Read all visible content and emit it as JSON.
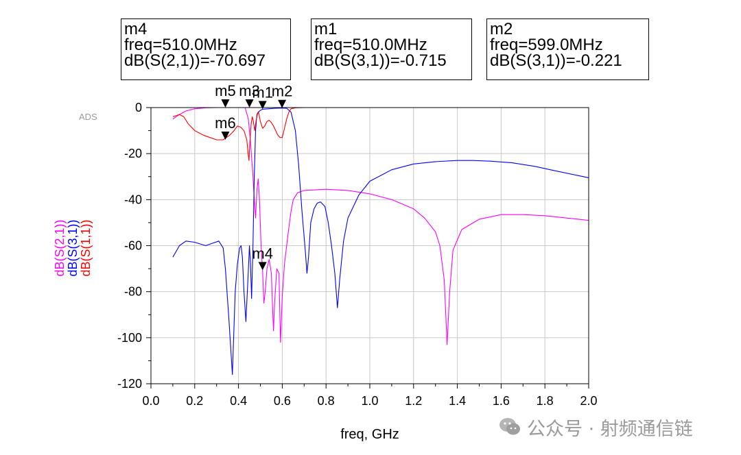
{
  "app_label": "ADS",
  "marker_boxes": [
    {
      "name": "m4",
      "freq_line": "freq=510.0MHz",
      "value_line": "dB(S(2,1))=-70.697"
    },
    {
      "name": "m1",
      "freq_line": "freq=510.0MHz",
      "value_line": "dB(S(3,1))=-0.715"
    },
    {
      "name": "m2",
      "freq_line": "freq=599.0MHz",
      "value_line": "dB(S(3,1))=-0.221"
    }
  ],
  "watermark": {
    "text": "公众号 · 射频通信链"
  },
  "chart_data": {
    "type": "line",
    "xlabel": "freq, GHz",
    "ylabel_parts": [
      {
        "text": "dB(S(2,1))",
        "color": "#ff00ff"
      },
      {
        "text": "dB(S(3,1))",
        "color": "#0000ff"
      },
      {
        "text": "dB(S(1,1))",
        "color": "#ff0000"
      }
    ],
    "xlim": [
      0.0,
      2.0
    ],
    "ylim": [
      -120,
      0
    ],
    "x_ticks": [
      "0.0",
      "0.2",
      "0.4",
      "0.6",
      "0.8",
      "1.0",
      "1.2",
      "1.4",
      "1.6",
      "1.8",
      "2.0"
    ],
    "y_ticks": [
      "0",
      "-20",
      "-40",
      "-60",
      "-80",
      "-100",
      "-120"
    ],
    "grid": true,
    "series": [
      {
        "name": "dB(S(2,1))",
        "color": "#ff00ff",
        "points": [
          [
            0.1,
            -5
          ],
          [
            0.13,
            -3
          ],
          [
            0.16,
            -1.5
          ],
          [
            0.2,
            -0.5
          ],
          [
            0.25,
            -0.1
          ],
          [
            0.3,
            0
          ],
          [
            0.4,
            0
          ],
          [
            0.43,
            0
          ],
          [
            0.445,
            -5
          ],
          [
            0.455,
            -15
          ],
          [
            0.465,
            -28
          ],
          [
            0.472,
            -40
          ],
          [
            0.478,
            -48
          ],
          [
            0.484,
            -36
          ],
          [
            0.49,
            -31
          ],
          [
            0.496,
            -40
          ],
          [
            0.503,
            -60
          ],
          [
            0.51,
            -70.697
          ],
          [
            0.516,
            -85
          ],
          [
            0.522,
            -80
          ],
          [
            0.53,
            -70
          ],
          [
            0.54,
            -66
          ],
          [
            0.55,
            -72
          ],
          [
            0.555,
            -85
          ],
          [
            0.56,
            -97
          ],
          [
            0.565,
            -85
          ],
          [
            0.575,
            -70
          ],
          [
            0.585,
            -72
          ],
          [
            0.592,
            -102
          ],
          [
            0.6,
            -82
          ],
          [
            0.61,
            -68
          ],
          [
            0.625,
            -56
          ],
          [
            0.64,
            -45
          ],
          [
            0.65,
            -40
          ],
          [
            0.67,
            -37
          ],
          [
            0.7,
            -36
          ],
          [
            0.8,
            -35.5
          ],
          [
            0.9,
            -36
          ],
          [
            1.0,
            -37.5
          ],
          [
            1.1,
            -40
          ],
          [
            1.2,
            -44
          ],
          [
            1.25,
            -48
          ],
          [
            1.3,
            -54
          ],
          [
            1.32,
            -60
          ],
          [
            1.34,
            -75
          ],
          [
            1.353,
            -103
          ],
          [
            1.365,
            -80
          ],
          [
            1.38,
            -62
          ],
          [
            1.42,
            -53
          ],
          [
            1.5,
            -48.5
          ],
          [
            1.6,
            -46.5
          ],
          [
            1.7,
            -46.5
          ],
          [
            1.8,
            -47
          ],
          [
            1.9,
            -48
          ],
          [
            2.0,
            -49
          ]
        ]
      },
      {
        "name": "dB(S(3,1))",
        "color": "#0000ff",
        "points": [
          [
            0.1,
            -65
          ],
          [
            0.13,
            -60
          ],
          [
            0.16,
            -58
          ],
          [
            0.2,
            -58.5
          ],
          [
            0.25,
            -60
          ],
          [
            0.28,
            -59
          ],
          [
            0.31,
            -58
          ],
          [
            0.33,
            -61
          ],
          [
            0.34,
            -70
          ],
          [
            0.355,
            -90
          ],
          [
            0.372,
            -116
          ],
          [
            0.385,
            -80
          ],
          [
            0.395,
            -68
          ],
          [
            0.405,
            -61
          ],
          [
            0.412,
            -60
          ],
          [
            0.418,
            -65
          ],
          [
            0.425,
            -80
          ],
          [
            0.434,
            -93
          ],
          [
            0.443,
            -75
          ],
          [
            0.45,
            -60
          ],
          [
            0.455,
            -68
          ],
          [
            0.46,
            -83
          ],
          [
            0.466,
            -60
          ],
          [
            0.472,
            -30
          ],
          [
            0.478,
            -10
          ],
          [
            0.484,
            -3
          ],
          [
            0.49,
            -2
          ],
          [
            0.5,
            -1.2
          ],
          [
            0.51,
            -0.715
          ],
          [
            0.54,
            -0.5
          ],
          [
            0.57,
            -0.3
          ],
          [
            0.599,
            -0.221
          ],
          [
            0.62,
            -0.3
          ],
          [
            0.64,
            -2
          ],
          [
            0.66,
            -10
          ],
          [
            0.675,
            -25
          ],
          [
            0.69,
            -45
          ],
          [
            0.705,
            -62
          ],
          [
            0.713,
            -72
          ],
          [
            0.72,
            -65
          ],
          [
            0.73,
            -50
          ],
          [
            0.745,
            -44
          ],
          [
            0.76,
            -41.5
          ],
          [
            0.775,
            -41
          ],
          [
            0.795,
            -43
          ],
          [
            0.81,
            -50
          ],
          [
            0.825,
            -60
          ],
          [
            0.84,
            -72
          ],
          [
            0.852,
            -87
          ],
          [
            0.862,
            -75
          ],
          [
            0.88,
            -58
          ],
          [
            0.9,
            -48
          ],
          [
            0.95,
            -38
          ],
          [
            1.0,
            -32
          ],
          [
            1.1,
            -27
          ],
          [
            1.2,
            -24.5
          ],
          [
            1.3,
            -23.5
          ],
          [
            1.4,
            -23
          ],
          [
            1.47,
            -23
          ],
          [
            1.55,
            -23.3
          ],
          [
            1.65,
            -24
          ],
          [
            1.75,
            -25.5
          ],
          [
            1.85,
            -27.5
          ],
          [
            1.95,
            -29.5
          ],
          [
            2.0,
            -30.5
          ]
        ]
      },
      {
        "name": "dB(S(1,1))",
        "color": "#ff0000",
        "points": [
          [
            0.1,
            -4
          ],
          [
            0.13,
            -3
          ],
          [
            0.15,
            -4
          ],
          [
            0.17,
            -7
          ],
          [
            0.2,
            -10
          ],
          [
            0.24,
            -12
          ],
          [
            0.27,
            -13
          ],
          [
            0.3,
            -14
          ],
          [
            0.33,
            -14
          ],
          [
            0.36,
            -12
          ],
          [
            0.38,
            -10
          ],
          [
            0.395,
            -8
          ],
          [
            0.41,
            -8.5
          ],
          [
            0.425,
            -10
          ],
          [
            0.438,
            -14
          ],
          [
            0.444,
            -20
          ],
          [
            0.448,
            -23
          ],
          [
            0.452,
            -15
          ],
          [
            0.458,
            -7
          ],
          [
            0.463,
            -4
          ],
          [
            0.468,
            -6
          ],
          [
            0.474,
            -10
          ],
          [
            0.48,
            -6
          ],
          [
            0.486,
            -3
          ],
          [
            0.492,
            -2
          ],
          [
            0.5,
            -6
          ],
          [
            0.51,
            -9
          ],
          [
            0.52,
            -8
          ],
          [
            0.53,
            -6
          ],
          [
            0.54,
            -5.5
          ],
          [
            0.55,
            -6.5
          ],
          [
            0.56,
            -8
          ],
          [
            0.57,
            -10
          ],
          [
            0.58,
            -12
          ],
          [
            0.59,
            -13
          ],
          [
            0.6,
            -13
          ],
          [
            0.61,
            -9
          ],
          [
            0.62,
            -5
          ],
          [
            0.63,
            -2
          ],
          [
            0.64,
            -0.5
          ],
          [
            0.66,
            -0.1
          ],
          [
            0.7,
            0
          ],
          [
            2.0,
            0
          ]
        ]
      }
    ],
    "markers": [
      {
        "name": "m5",
        "x": 0.34,
        "y": 0
      },
      {
        "name": "m3",
        "x": 0.45,
        "y": 0
      },
      {
        "name": "m1",
        "x": 0.51,
        "y": -0.715
      },
      {
        "name": "m2",
        "x": 0.599,
        "y": -0.221
      },
      {
        "name": "m6",
        "x": 0.34,
        "y": -14
      },
      {
        "name": "m4",
        "x": 0.51,
        "y": -70.697
      }
    ]
  }
}
